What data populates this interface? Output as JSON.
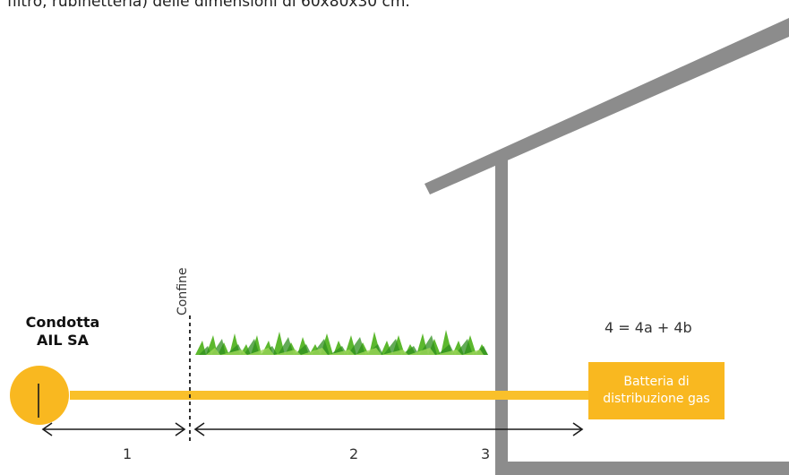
{
  "header": {
    "text": "filtro, rubinetteria) delle dimensioni di 60x80x30 cm."
  },
  "conduit": {
    "title_line1": "Condotta",
    "title_line2": "AIL SA"
  },
  "boundary": {
    "label": "Confine"
  },
  "battery": {
    "line1": "Batteria di",
    "line2": "distribuzione gas"
  },
  "formula": "4 = 4a + 4b",
  "segments": {
    "s1": "1",
    "s2": "2",
    "s3": "3"
  },
  "colors": {
    "pipe": "#f9c02a",
    "conduit_circle": "#f9b820",
    "battery": "#f9b820",
    "house": "#8c8c8c",
    "grass": "#5cb82e",
    "dimension_lines": "#1a1a1a"
  }
}
